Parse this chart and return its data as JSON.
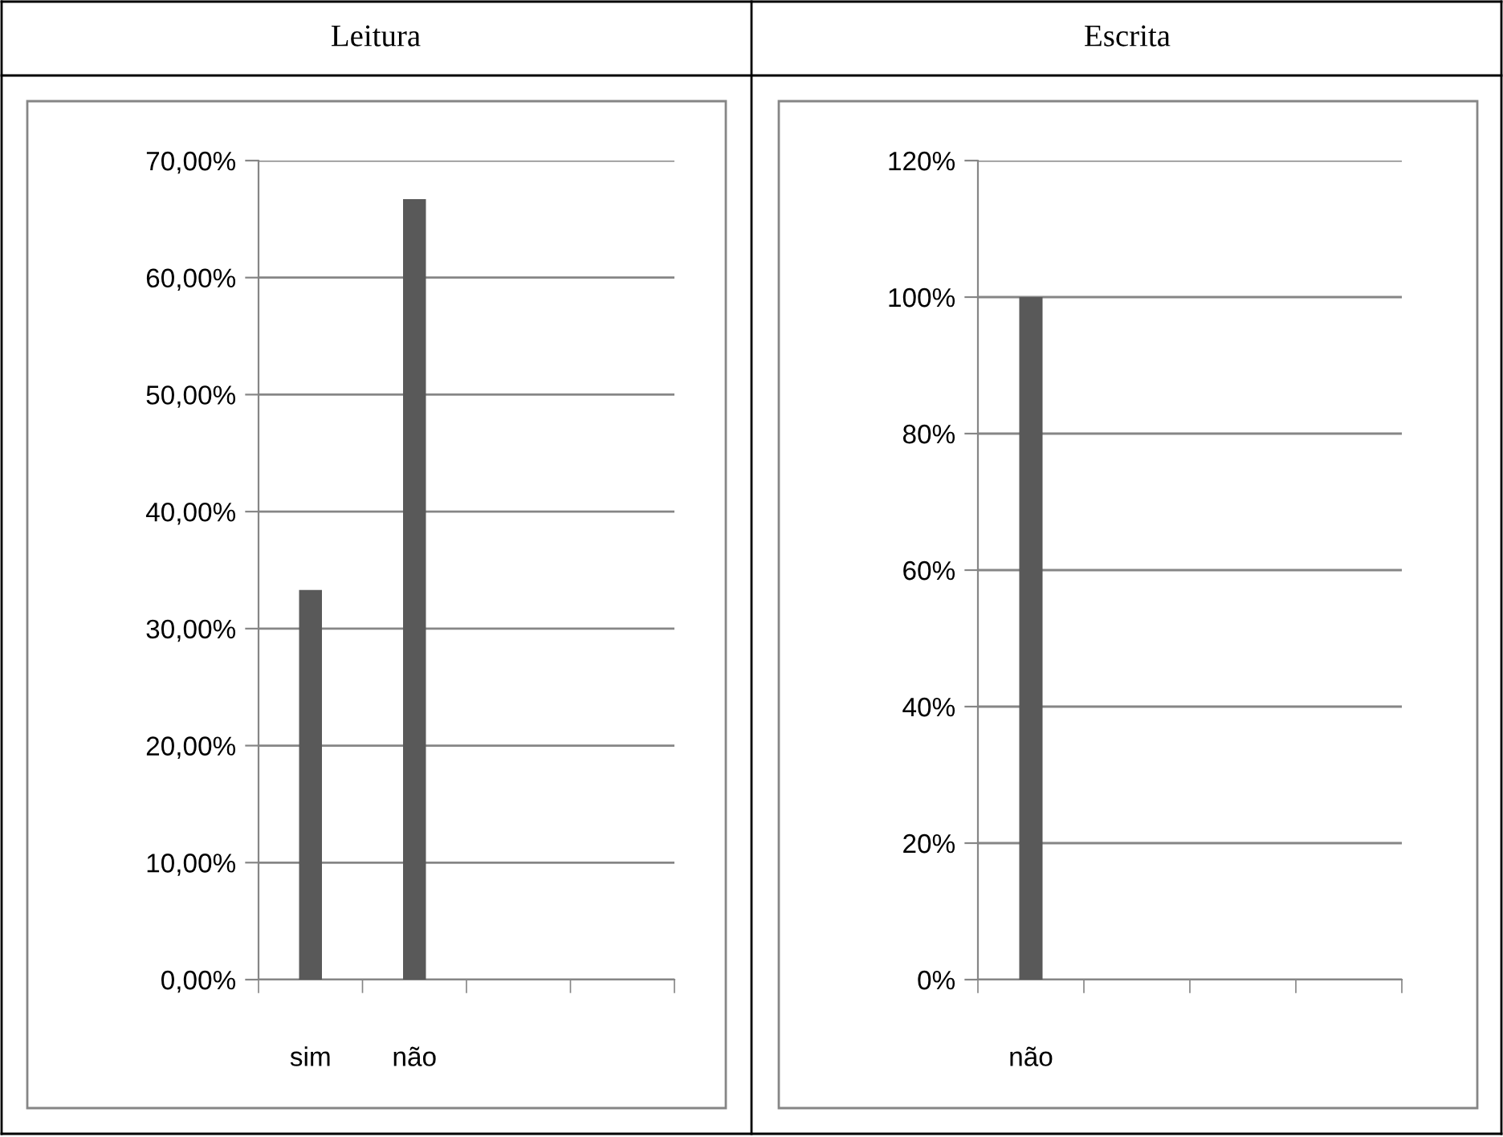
{
  "chart_data": [
    {
      "type": "bar",
      "title": "Leitura",
      "categories": [
        "sim",
        "não",
        null,
        null
      ],
      "values": [
        33.3,
        66.7,
        null,
        null
      ],
      "color": "#595959",
      "ylim": [
        0,
        70
      ],
      "yticks": [
        {
          "value": 0,
          "label": "0,00%"
        },
        {
          "value": 10,
          "label": "10,00%"
        },
        {
          "value": 20,
          "label": "20,00%"
        },
        {
          "value": 30,
          "label": "30,00%"
        },
        {
          "value": 40,
          "label": "40,00%"
        },
        {
          "value": 50,
          "label": "50,00%"
        },
        {
          "value": 60,
          "label": "60,00%"
        },
        {
          "value": 70,
          "label": "70,00%"
        }
      ],
      "grid": "y"
    },
    {
      "type": "bar",
      "title": "Escrita",
      "categories": [
        "não",
        null,
        null,
        null
      ],
      "values": [
        100,
        null,
        null,
        null
      ],
      "color": "#595959",
      "ylim": [
        0,
        120
      ],
      "yticks": [
        {
          "value": 0,
          "label": "0%"
        },
        {
          "value": 20,
          "label": "20%"
        },
        {
          "value": 40,
          "label": "40%"
        },
        {
          "value": 60,
          "label": "60%"
        },
        {
          "value": 80,
          "label": "80%"
        },
        {
          "value": 100,
          "label": "100%"
        },
        {
          "value": 120,
          "label": "120%"
        }
      ],
      "grid": "y"
    }
  ]
}
